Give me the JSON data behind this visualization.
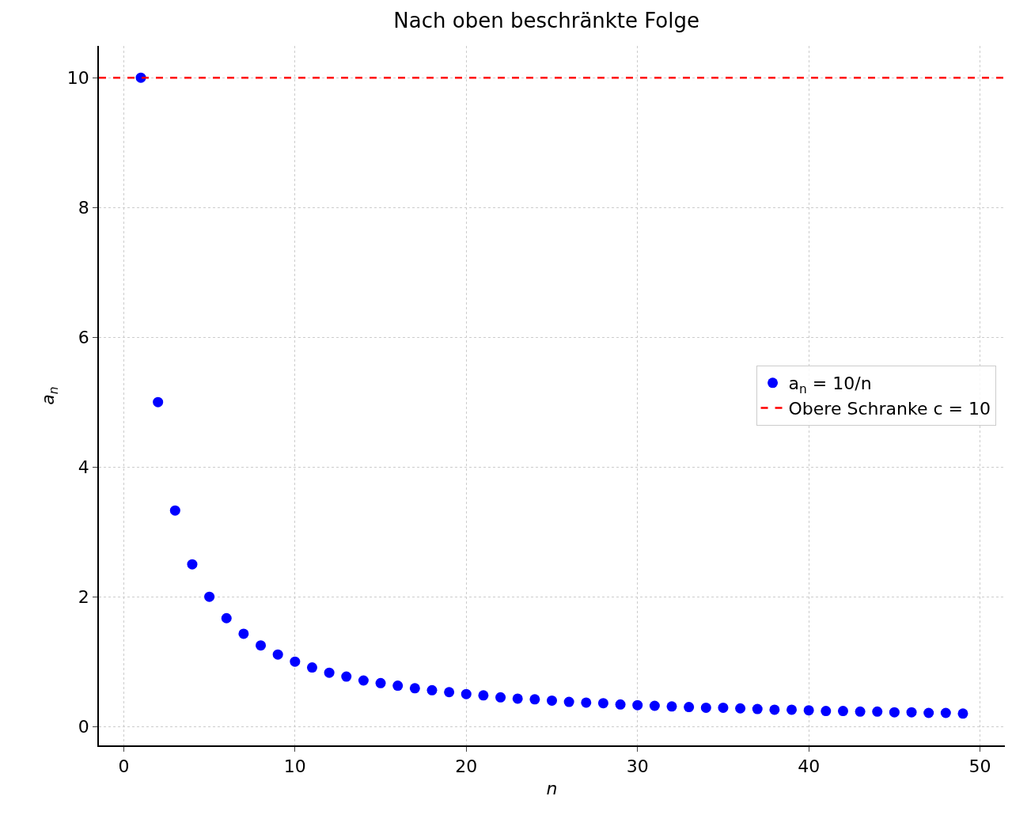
{
  "chart_data": {
    "type": "scatter",
    "title": "Nach oben beschränkte Folge",
    "xlabel": "n",
    "ylabel": "a$_{n}$",
    "x": [
      1,
      2,
      3,
      4,
      5,
      6,
      7,
      8,
      9,
      10,
      11,
      12,
      13,
      14,
      15,
      16,
      17,
      18,
      19,
      20,
      21,
      22,
      23,
      24,
      25,
      26,
      27,
      28,
      29,
      30,
      31,
      32,
      33,
      34,
      35,
      36,
      37,
      38,
      39,
      40,
      41,
      42,
      43,
      44,
      45,
      46,
      47,
      48,
      49
    ],
    "series": [
      {
        "name": "a$_{n}$ = 10/n",
        "color": "#0000ff",
        "values": [
          10,
          5,
          3.33,
          2.5,
          2,
          1.67,
          1.43,
          1.25,
          1.11,
          1,
          0.91,
          0.83,
          0.77,
          0.71,
          0.67,
          0.63,
          0.59,
          0.56,
          0.53,
          0.5,
          0.48,
          0.45,
          0.43,
          0.42,
          0.4,
          0.38,
          0.37,
          0.36,
          0.34,
          0.33,
          0.32,
          0.31,
          0.3,
          0.29,
          0.29,
          0.28,
          0.27,
          0.26,
          0.26,
          0.25,
          0.24,
          0.24,
          0.23,
          0.23,
          0.22,
          0.22,
          0.21,
          0.21,
          0.2
        ]
      }
    ],
    "ref_lines": [
      {
        "axis": "y",
        "value": 10,
        "label": "Obere Schranke c = 10",
        "color": "#ff0000",
        "line_style": "dashed"
      }
    ],
    "xlim": [
      -1.45,
      51.45
    ],
    "xticks": [
      0,
      10,
      20,
      30,
      40,
      50
    ],
    "ylim": [
      -0.29,
      10.49
    ],
    "yticks": [
      0,
      2,
      4,
      6,
      8,
      10
    ],
    "grid": true,
    "legend": "right",
    "marker": "circle"
  }
}
